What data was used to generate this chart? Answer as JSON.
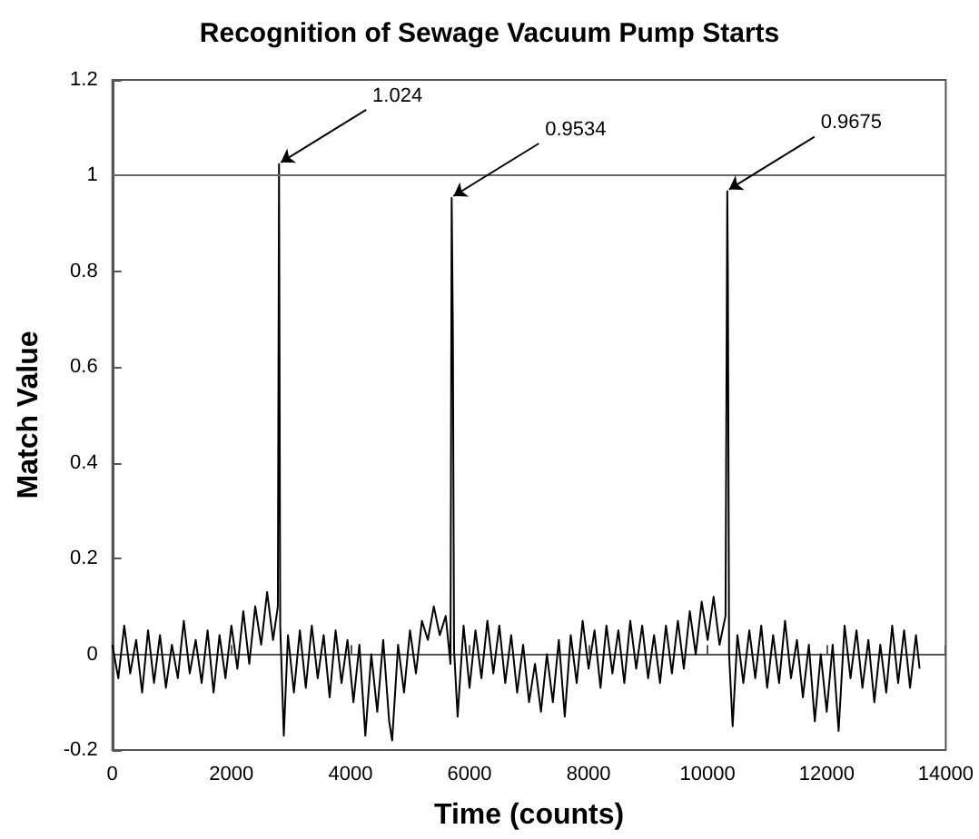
{
  "chart_data": {
    "type": "line",
    "title": "Recognition of Sewage Vacuum Pump Starts",
    "xlabel": "Time (counts)",
    "ylabel": "Match Value",
    "x": [
      0,
      100,
      200,
      300,
      400,
      500,
      600,
      700,
      800,
      900,
      1000,
      1100,
      1200,
      1300,
      1400,
      1500,
      1600,
      1700,
      1800,
      1900,
      2000,
      2100,
      2200,
      2300,
      2400,
      2500,
      2600,
      2700,
      2780,
      2800,
      2820,
      2880,
      2950,
      3050,
      3150,
      3250,
      3350,
      3450,
      3550,
      3650,
      3750,
      3850,
      3950,
      4050,
      4150,
      4250,
      4350,
      4450,
      4550,
      4650,
      4700,
      4800,
      4900,
      5000,
      5100,
      5200,
      5300,
      5400,
      5500,
      5600,
      5680,
      5700,
      5720,
      5740,
      5800,
      5900,
      6000,
      6100,
      6200,
      6300,
      6400,
      6500,
      6600,
      6700,
      6800,
      6900,
      7000,
      7100,
      7200,
      7300,
      7400,
      7500,
      7600,
      7700,
      7800,
      7900,
      8000,
      8100,
      8200,
      8300,
      8400,
      8500,
      8600,
      8700,
      8800,
      8900,
      9000,
      9100,
      9200,
      9300,
      9400,
      9500,
      9600,
      9700,
      9800,
      9900,
      10000,
      10100,
      10200,
      10300,
      10330,
      10340,
      10360,
      10420,
      10500,
      10600,
      10700,
      10800,
      10900,
      11000,
      11100,
      11200,
      11300,
      11400,
      11500,
      11600,
      11700,
      11800,
      11900,
      12000,
      12100,
      12200,
      12300,
      12400,
      12500,
      12600,
      12700,
      12800,
      12900,
      13000,
      13100,
      13200,
      13300,
      13400,
      13500,
      13560
    ],
    "series": [
      {
        "color": "#000000",
        "values": [
          0.02,
          -0.05,
          0.06,
          -0.04,
          0.03,
          -0.08,
          0.05,
          -0.06,
          0.04,
          -0.07,
          0.02,
          -0.05,
          0.07,
          -0.04,
          0.03,
          -0.06,
          0.05,
          -0.08,
          0.04,
          -0.05,
          0.06,
          -0.03,
          0.09,
          -0.02,
          0.1,
          0.02,
          0.13,
          0.03,
          0.1,
          1.024,
          0.06,
          -0.17,
          0.04,
          -0.08,
          0.05,
          -0.07,
          0.06,
          -0.05,
          0.04,
          -0.09,
          0.05,
          -0.06,
          0.03,
          -0.1,
          0.02,
          -0.17,
          0.0,
          -0.12,
          0.03,
          -0.14,
          -0.18,
          0.02,
          -0.08,
          0.05,
          -0.04,
          0.07,
          0.03,
          0.1,
          0.04,
          0.08,
          -0.02,
          0.9534,
          0.68,
          0.01,
          -0.13,
          0.06,
          -0.07,
          0.05,
          -0.05,
          0.07,
          -0.04,
          0.06,
          -0.06,
          0.04,
          -0.08,
          0.02,
          -0.1,
          -0.02,
          -0.12,
          0.0,
          -0.1,
          0.03,
          -0.13,
          0.04,
          -0.06,
          0.07,
          -0.03,
          0.05,
          -0.07,
          0.06,
          -0.04,
          0.05,
          -0.06,
          0.07,
          -0.03,
          0.06,
          -0.05,
          0.04,
          -0.06,
          0.06,
          -0.04,
          0.07,
          -0.03,
          0.09,
          0.0,
          0.11,
          0.03,
          0.12,
          0.02,
          0.08,
          0.9675,
          0.78,
          0.0,
          -0.15,
          0.04,
          -0.06,
          0.05,
          -0.05,
          0.06,
          -0.07,
          0.04,
          -0.06,
          0.07,
          -0.05,
          0.03,
          -0.09,
          0.02,
          -0.14,
          0.0,
          -0.12,
          0.02,
          -0.16,
          0.06,
          -0.05,
          0.05,
          -0.07,
          0.03,
          -0.1,
          0.02,
          -0.08,
          0.06,
          -0.06,
          0.05,
          -0.07,
          0.04,
          -0.03
        ]
      }
    ],
    "annotations": [
      {
        "text": "1.024",
        "x": 2800,
        "y": 1.024
      },
      {
        "text": "0.9534",
        "x": 5700,
        "y": 0.9534
      },
      {
        "text": "0.9675",
        "x": 10330,
        "y": 0.9675
      }
    ],
    "ref_lines": [
      {
        "axis": "y",
        "value": 1,
        "color": "#666666"
      }
    ],
    "xlim": [
      0,
      14000
    ],
    "xticks": [
      0,
      2000,
      4000,
      6000,
      8000,
      10000,
      12000,
      14000
    ],
    "ylim": [
      -0.2,
      1.2
    ],
    "yticks": [
      -0.2,
      0,
      0.2,
      0.4,
      0.6,
      0.8,
      1,
      1.2
    ],
    "marker": "none",
    "line_style": "solid"
  }
}
